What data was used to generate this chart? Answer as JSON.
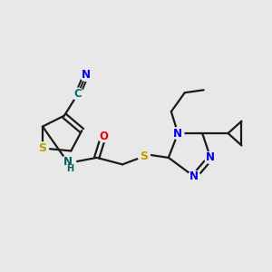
{
  "bg_color": "#e8e8e8",
  "bond_color": "#1a1a1a",
  "line_width": 1.6,
  "atom_colors": {
    "S": "#b8a000",
    "N": "#0000ee",
    "O": "#ee0000",
    "C_cyan": "#007070",
    "NH": "#006060",
    "H": "#003060"
  },
  "font_size_atom": 8.5,
  "font_size_small": 7.0
}
